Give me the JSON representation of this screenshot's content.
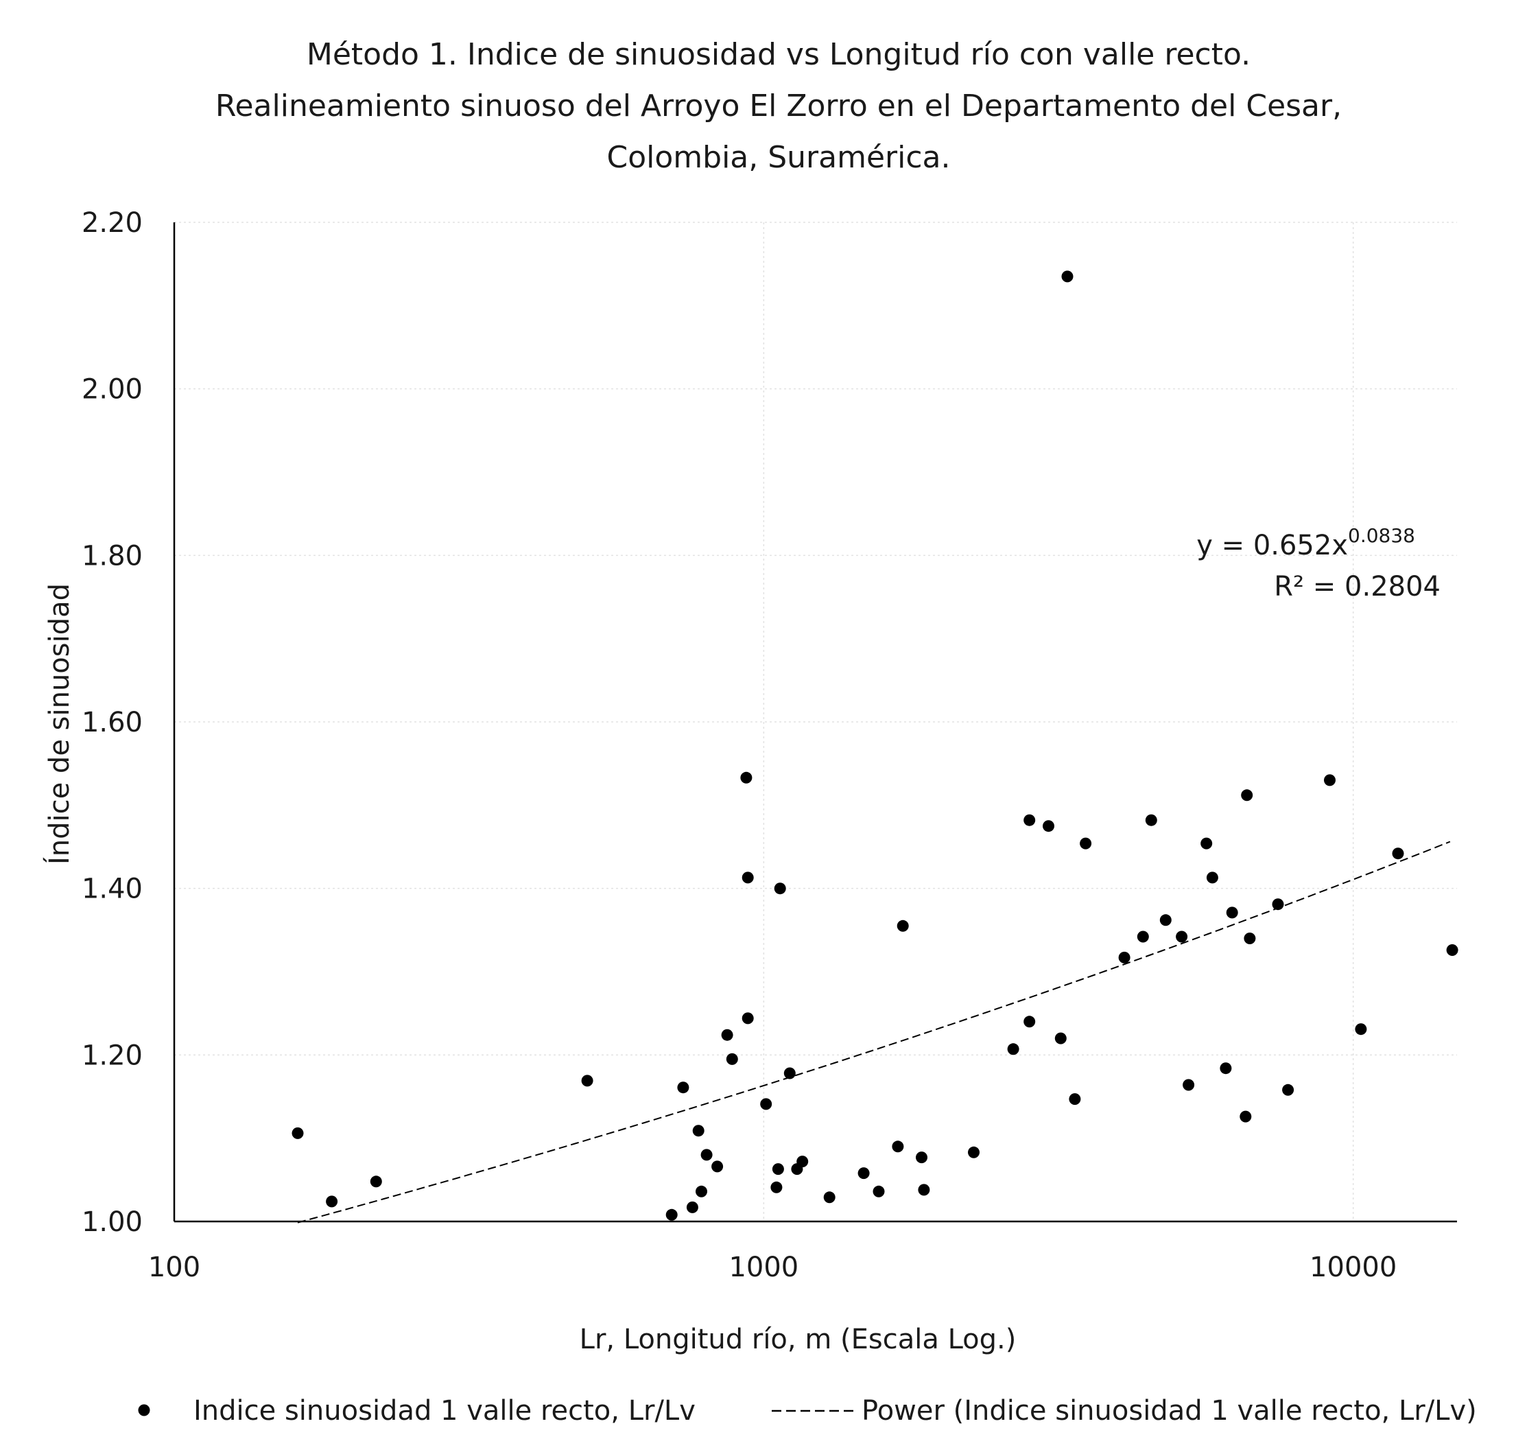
{
  "chart_data": {
    "type": "scatter",
    "title": [
      "Método 1. Indice de sinuosidad vs Longitud río con valle recto.",
      "Realineamiento sinuoso del Arroyo El Zorro en el Departamento del Cesar,",
      "Colombia, Suramérica."
    ],
    "xlabel": "Lr, Longitud río, m (Escala Log.)",
    "ylabel": "Índice de sinuosidad",
    "x_scale": "log",
    "xlim": [
      100,
      15000
    ],
    "ylim": [
      1.0,
      2.2
    ],
    "x_ticks": [
      100,
      1000,
      10000
    ],
    "x_tick_labels": [
      "100",
      "1000",
      "10000"
    ],
    "y_ticks": [
      1.0,
      1.2,
      1.4,
      1.6,
      1.8,
      2.0,
      2.2
    ],
    "y_tick_labels": [
      "1.00",
      "1.20",
      "1.40",
      "1.60",
      "1.80",
      "2.00",
      "2.20"
    ],
    "grid": true,
    "legend_position": "bottom",
    "series": [
      {
        "name": "Indice sinuosidad 1 valle recto, Lr/Lv",
        "marker": "circle",
        "color": "#000000",
        "points": [
          [
            162,
            1.106
          ],
          [
            185,
            1.024
          ],
          [
            220,
            1.048
          ],
          [
            502,
            1.169
          ],
          [
            698,
            1.008
          ],
          [
            730,
            1.161
          ],
          [
            757,
            1.017
          ],
          [
            775,
            1.109
          ],
          [
            784,
            1.036
          ],
          [
            800,
            1.08
          ],
          [
            834,
            1.066
          ],
          [
            867,
            1.224
          ],
          [
            884,
            1.195
          ],
          [
            934,
            1.533
          ],
          [
            940,
            1.413
          ],
          [
            940,
            1.244
          ],
          [
            1009,
            1.141
          ],
          [
            1051,
            1.041
          ],
          [
            1058,
            1.063
          ],
          [
            1066,
            1.4
          ],
          [
            1107,
            1.178
          ],
          [
            1139,
            1.063
          ],
          [
            1163,
            1.072
          ],
          [
            1293,
            1.029
          ],
          [
            1478,
            1.058
          ],
          [
            1567,
            1.036
          ],
          [
            1689,
            1.09
          ],
          [
            1722,
            1.355
          ],
          [
            1853,
            1.077
          ],
          [
            1870,
            1.038
          ],
          [
            2271,
            1.083
          ],
          [
            2650,
            1.207
          ],
          [
            2823,
            1.24
          ],
          [
            2823,
            1.482
          ],
          [
            3042,
            1.475
          ],
          [
            3190,
            1.22
          ],
          [
            3274,
            2.135
          ],
          [
            3371,
            1.147
          ],
          [
            3516,
            1.454
          ],
          [
            4091,
            1.317
          ],
          [
            4400,
            1.342
          ],
          [
            4544,
            1.482
          ],
          [
            4807,
            1.362
          ],
          [
            5117,
            1.342
          ],
          [
            5255,
            1.164
          ],
          [
            5637,
            1.454
          ],
          [
            5770,
            1.413
          ],
          [
            6079,
            1.184
          ],
          [
            6232,
            1.371
          ],
          [
            6569,
            1.126
          ],
          [
            6602,
            1.512
          ],
          [
            6676,
            1.34
          ],
          [
            7454,
            1.381
          ],
          [
            7752,
            1.158
          ],
          [
            9126,
            1.53
          ],
          [
            10306,
            1.231
          ],
          [
            11913,
            1.442
          ],
          [
            14724,
            1.326
          ]
        ]
      },
      {
        "name": "Power (Indice sinuosidad 1 valle recto, Lr/Lv)",
        "type": "trendline",
        "model": "power",
        "a": 0.652,
        "b": 0.0838,
        "x_range": [
          162,
          14600
        ],
        "style": "dashed",
        "color": "#000000"
      }
    ],
    "annotations": {
      "equation": "y = 0.652x",
      "exponent": "0.0838",
      "r2": "R² = 0.2804"
    }
  }
}
